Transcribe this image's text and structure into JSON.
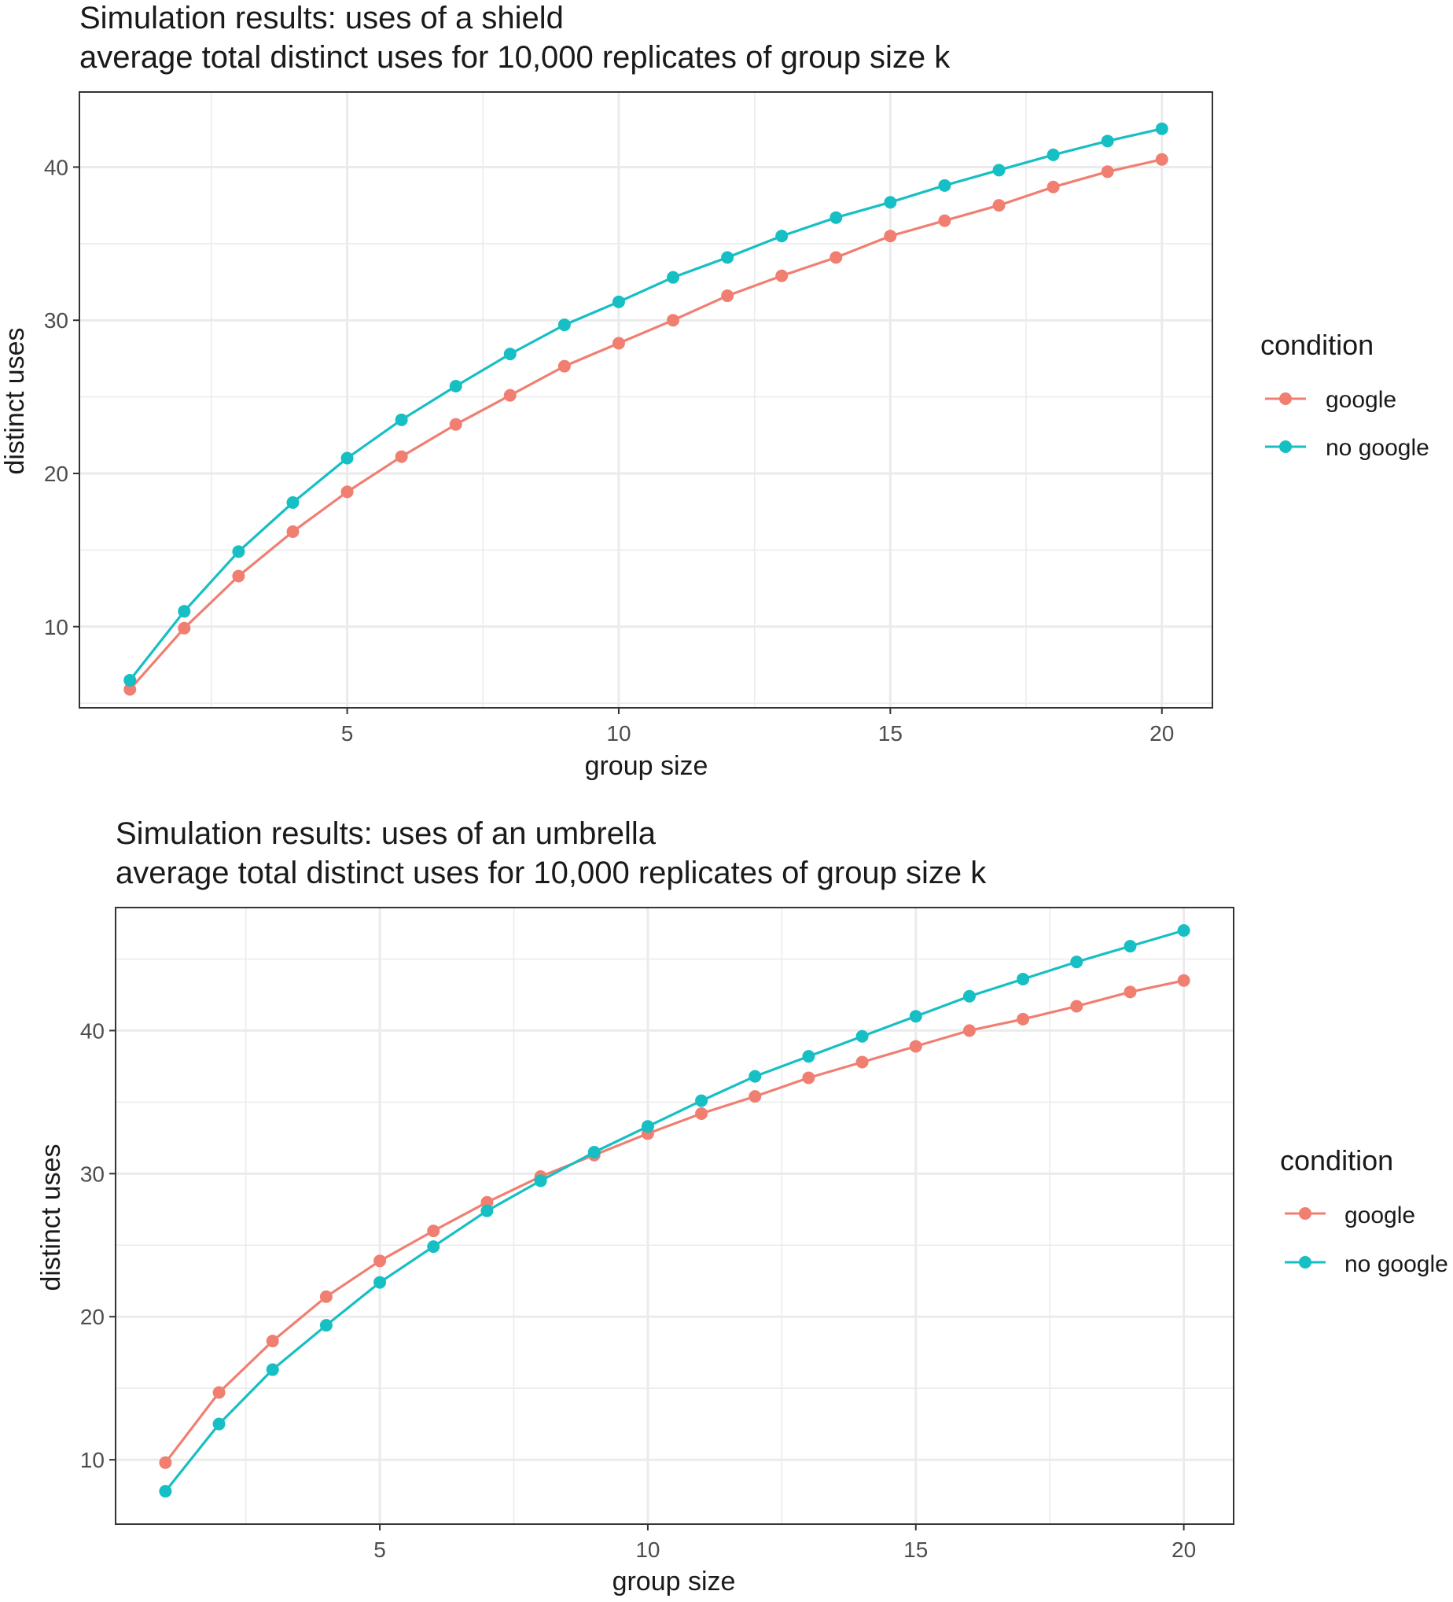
{
  "colors": {
    "google": "#F07F72",
    "no_google": "#16BFC4",
    "grid": "#EBEBEB",
    "axis_text": "#4D4D4D",
    "text": "#1A1A1A",
    "panel_border": "#333333"
  },
  "chart_data": [
    {
      "type": "line",
      "title": "Simulation results: uses of a shield",
      "subtitle": "average total distinct uses for 10,000 replicates of group size k",
      "xlabel": "group size",
      "ylabel": "distinct uses",
      "x": [
        1,
        2,
        3,
        4,
        5,
        6,
        7,
        8,
        9,
        10,
        11,
        12,
        13,
        14,
        15,
        16,
        17,
        18,
        19,
        20
      ],
      "xticks": [
        5,
        10,
        15,
        20
      ],
      "yticks": [
        10,
        20,
        30,
        40
      ],
      "xlim": [
        0.07,
        20.93
      ],
      "ylim": [
        4.7,
        44.9
      ],
      "grid": true,
      "legend": {
        "title": "condition",
        "position": "right"
      },
      "series": [
        {
          "name": "google",
          "color": "#F07F72",
          "values": [
            5.9,
            9.9,
            13.3,
            16.2,
            18.8,
            21.1,
            23.2,
            25.1,
            27.0,
            28.5,
            30.0,
            31.6,
            32.9,
            34.1,
            35.5,
            36.5,
            37.5,
            38.7,
            39.7,
            40.5
          ]
        },
        {
          "name": "no google",
          "color": "#16BFC4",
          "values": [
            6.5,
            11.0,
            14.9,
            18.1,
            21.0,
            23.5,
            25.7,
            27.8,
            29.7,
            31.2,
            32.8,
            34.1,
            35.5,
            36.7,
            37.7,
            38.8,
            39.8,
            40.8,
            41.7,
            42.5
          ]
        }
      ]
    },
    {
      "type": "line",
      "title": "Simulation results: uses of an umbrella",
      "subtitle": "average total distinct uses for 10,000 replicates of group size k",
      "xlabel": "group size",
      "ylabel": "distinct uses",
      "x": [
        1,
        2,
        3,
        4,
        5,
        6,
        7,
        8,
        9,
        10,
        11,
        12,
        13,
        14,
        15,
        16,
        17,
        18,
        19,
        20
      ],
      "xticks": [
        5,
        10,
        15,
        20
      ],
      "yticks": [
        10,
        20,
        30,
        40
      ],
      "xlim": [
        0.07,
        20.93
      ],
      "ylim": [
        5.5,
        48.6
      ],
      "grid": true,
      "legend": {
        "title": "condition",
        "position": "right"
      },
      "series": [
        {
          "name": "google",
          "color": "#F07F72",
          "values": [
            9.8,
            14.7,
            18.3,
            21.4,
            23.9,
            26.0,
            28.0,
            29.8,
            31.3,
            32.8,
            34.2,
            35.4,
            36.7,
            37.8,
            38.9,
            40.0,
            40.8,
            41.7,
            42.7,
            43.5
          ]
        },
        {
          "name": "no google",
          "color": "#16BFC4",
          "values": [
            7.8,
            12.5,
            16.3,
            19.4,
            22.4,
            24.9,
            27.4,
            29.5,
            31.5,
            33.3,
            35.1,
            36.8,
            38.2,
            39.6,
            41.0,
            42.4,
            43.6,
            44.8,
            45.9,
            47.0
          ]
        }
      ]
    }
  ]
}
